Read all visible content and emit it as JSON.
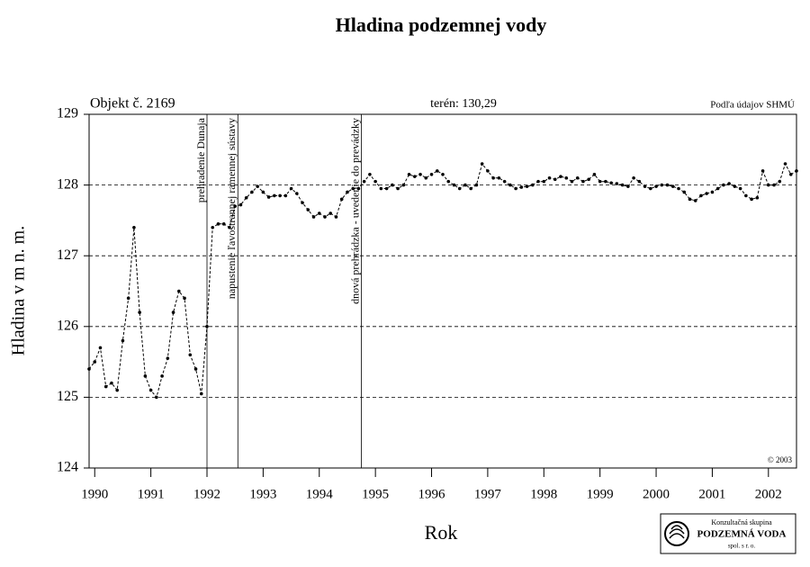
{
  "chart_data": {
    "type": "line",
    "title": "Hladina podzemnej vody",
    "object_label": "Objekt č. 2169",
    "terrain_label": "terén: 130,29",
    "source_label": "Podľa údajov SHMÚ",
    "copyright": "© 2003",
    "xlabel": "Rok",
    "ylabel": "Hladina v m n. m.",
    "logo": {
      "line1": "Konzultačná skupina",
      "line2": "PODZEMNÁ VODA",
      "line3": "spol. s r. o."
    },
    "xlim": [
      1989.9,
      2002.5
    ],
    "ylim": [
      124,
      129
    ],
    "xticks": [
      1990,
      1991,
      1992,
      1993,
      1994,
      1995,
      1996,
      1997,
      1998,
      1999,
      2000,
      2001,
      2002
    ],
    "yticks": [
      124,
      125,
      126,
      127,
      128,
      129
    ],
    "grid": true,
    "events": [
      {
        "x": 1992.0,
        "label": "prehradenie Dunaja"
      },
      {
        "x": 1992.55,
        "label": "napustenie ľavostrannej ramennej sústavy"
      },
      {
        "x": 1994.75,
        "label": "dnová prehrádzka - uvedenie do prevádzky"
      }
    ],
    "series": [
      {
        "color": "#000000",
        "x": [
          1989.9,
          1990,
          1990.1,
          1990.2,
          1990.3,
          1990.4,
          1990.5,
          1990.6,
          1990.7,
          1990.8,
          1990.9,
          1991,
          1991.1,
          1991.2,
          1991.3,
          1991.4,
          1991.5,
          1991.6,
          1991.7,
          1991.8,
          1991.9,
          1992,
          1992.1,
          1992.2,
          1992.3,
          1992.4,
          1992.5,
          1992.6,
          1992.7,
          1992.8,
          1992.9,
          1993,
          1993.1,
          1993.2,
          1993.3,
          1993.4,
          1993.5,
          1993.6,
          1993.7,
          1993.8,
          1993.9,
          1994,
          1994.1,
          1994.2,
          1994.3,
          1994.4,
          1994.5,
          1994.6,
          1994.7,
          1994.8,
          1994.9,
          1995,
          1995.1,
          1995.2,
          1995.3,
          1995.4,
          1995.5,
          1995.6,
          1995.7,
          1995.8,
          1995.9,
          1996,
          1996.1,
          1996.2,
          1996.3,
          1996.4,
          1996.5,
          1996.6,
          1996.7,
          1996.8,
          1996.9,
          1997,
          1997.1,
          1997.2,
          1997.3,
          1997.4,
          1997.5,
          1997.6,
          1997.7,
          1997.8,
          1997.9,
          1998,
          1998.1,
          1998.2,
          1998.3,
          1998.4,
          1998.5,
          1998.6,
          1998.7,
          1998.8,
          1998.9,
          1999,
          1999.1,
          1999.2,
          1999.3,
          1999.4,
          1999.5,
          1999.6,
          1999.7,
          1999.8,
          1999.9,
          2000,
          2000.1,
          2000.2,
          2000.3,
          2000.4,
          2000.5,
          2000.6,
          2000.7,
          2000.8,
          2000.9,
          2001,
          2001.1,
          2001.2,
          2001.3,
          2001.4,
          2001.5,
          2001.6,
          2001.7,
          2001.8,
          2001.9,
          2002,
          2002.1,
          2002.2,
          2002.3,
          2002.4,
          2002.5
        ],
        "values": [
          125.4,
          125.5,
          125.7,
          125.15,
          125.2,
          125.1,
          125.8,
          126.4,
          127.4,
          126.2,
          125.3,
          125.1,
          125.0,
          125.3,
          125.55,
          126.2,
          126.5,
          126.4,
          125.6,
          125.4,
          125.05,
          126.0,
          127.4,
          127.45,
          127.45,
          127.4,
          127.7,
          127.72,
          127.82,
          127.9,
          127.98,
          127.9,
          127.83,
          127.85,
          127.85,
          127.85,
          127.95,
          127.88,
          127.75,
          127.65,
          127.55,
          127.6,
          127.55,
          127.6,
          127.55,
          127.8,
          127.9,
          127.95,
          127.95,
          128.05,
          128.15,
          128.05,
          127.95,
          127.95,
          128.0,
          127.95,
          128.0,
          128.15,
          128.12,
          128.15,
          128.1,
          128.15,
          128.2,
          128.15,
          128.05,
          128.0,
          127.95,
          128.0,
          127.95,
          128.0,
          128.3,
          128.2,
          128.1,
          128.1,
          128.05,
          128.0,
          127.95,
          127.97,
          127.98,
          128.0,
          128.05,
          128.05,
          128.1,
          128.08,
          128.12,
          128.1,
          128.05,
          128.1,
          128.05,
          128.08,
          128.15,
          128.05,
          128.05,
          128.03,
          128.02,
          128.0,
          127.98,
          128.1,
          128.05,
          127.98,
          127.95,
          127.98,
          128.0,
          128.0,
          127.98,
          127.95,
          127.9,
          127.8,
          127.78,
          127.85,
          127.88,
          127.9,
          127.95,
          128.0,
          128.02,
          127.98,
          127.95,
          127.85,
          127.8,
          127.82,
          128.2,
          128.0,
          128.0,
          128.05,
          128.3,
          128.15,
          128.2
        ]
      }
    ]
  }
}
